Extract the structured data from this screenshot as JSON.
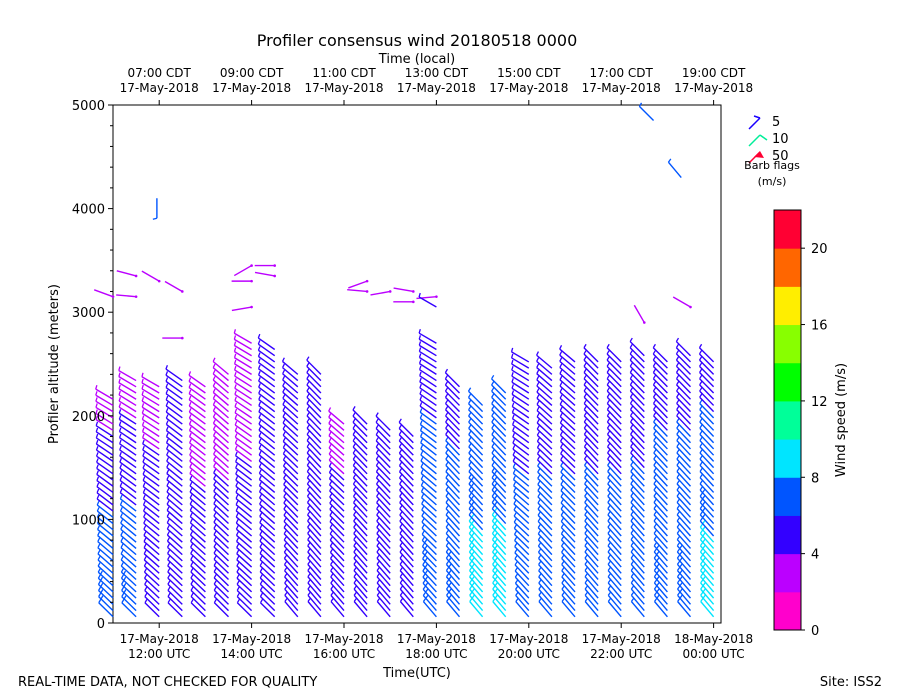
{
  "chart_data": {
    "type": "wind-barb-profile",
    "title": "Profiler consensus wind 20180518 0000",
    "xlabel": "Time(UTC)",
    "xlabel_top": "Time (local)",
    "ylabel": "Profiler altitude (meters)",
    "ylim": [
      0,
      5000
    ],
    "y_ticks": [
      0,
      1000,
      2000,
      3000,
      4000,
      5000
    ],
    "x_range_hours": [
      11.0,
      24.16
    ],
    "x_ticks_bottom": [
      {
        "hour": 12,
        "date": "17-May-2018",
        "time": "12:00 UTC"
      },
      {
        "hour": 14,
        "date": "17-May-2018",
        "time": "14:00 UTC"
      },
      {
        "hour": 16,
        "date": "17-May-2018",
        "time": "16:00 UTC"
      },
      {
        "hour": 18,
        "date": "17-May-2018",
        "time": "18:00 UTC"
      },
      {
        "hour": 20,
        "date": "17-May-2018",
        "time": "20:00 UTC"
      },
      {
        "hour": 22,
        "date": "17-May-2018",
        "time": "22:00 UTC"
      },
      {
        "hour": 24,
        "date": "18-May-2018",
        "time": "00:00 UTC"
      }
    ],
    "x_ticks_top": [
      {
        "hour": 12,
        "time": "07:00 CDT",
        "date": "17-May-2018"
      },
      {
        "hour": 14,
        "time": "09:00 CDT",
        "date": "17-May-2018"
      },
      {
        "hour": 16,
        "time": "11:00 CDT",
        "date": "17-May-2018"
      },
      {
        "hour": 18,
        "time": "13:00 CDT",
        "date": "17-May-2018"
      },
      {
        "hour": 20,
        "time": "15:00 CDT",
        "date": "17-May-2018"
      },
      {
        "hour": 22,
        "time": "17:00 CDT",
        "date": "17-May-2018"
      },
      {
        "hour": 24,
        "time": "19:00 CDT",
        "date": "17-May-2018"
      }
    ],
    "barb_legend": {
      "entries": [
        {
          "label": "5",
          "color": "#1a00ff"
        },
        {
          "label": "10",
          "color": "#00ee99"
        },
        {
          "label": "50",
          "color": "#ff0033"
        }
      ],
      "title": "Barb flags",
      "units": "(m/s)"
    },
    "colorbar": {
      "label": "Wind speed (m/s)",
      "ticks": [
        0,
        4,
        8,
        12,
        16,
        20
      ],
      "min": 0,
      "max": 22,
      "step": 2,
      "colors": [
        "#ff00cc",
        "#bb00ff",
        "#3300ff",
        "#0055ff",
        "#00e5ff",
        "#00ff99",
        "#00ff00",
        "#88ff00",
        "#ffee00",
        "#ff6600",
        "#ff0033"
      ]
    },
    "profiles": [
      {
        "hour": 11.0,
        "top": 2200,
        "upper_dir": 300,
        "upper_speed": 3,
        "lower_speed": 8,
        "lower_dir": 315
      },
      {
        "hour": 11.5,
        "top": 2350,
        "upper_dir": 300,
        "upper_speed": 3,
        "lower_speed": 8,
        "lower_dir": 315
      },
      {
        "hour": 12.0,
        "top": 2300,
        "upper_dir": 300,
        "upper_speed": 3,
        "lower_speed": 6,
        "lower_dir": 315
      },
      {
        "hour": 12.5,
        "top": 2350,
        "upper_dir": 305,
        "upper_speed": 4,
        "lower_speed": 6,
        "lower_dir": 315
      },
      {
        "hour": 13.0,
        "top": 2300,
        "upper_dir": 305,
        "upper_speed": 3,
        "lower_speed": 5,
        "lower_dir": 315
      },
      {
        "hour": 13.5,
        "top": 2400,
        "upper_dir": 310,
        "upper_speed": 3,
        "lower_speed": 5,
        "lower_dir": 315
      },
      {
        "hour": 14.0,
        "top": 2700,
        "upper_dir": 300,
        "upper_speed": 3,
        "lower_speed": 5,
        "lower_dir": 315
      },
      {
        "hour": 14.5,
        "top": 2650,
        "upper_dir": 305,
        "upper_speed": 5,
        "lower_speed": 6,
        "lower_dir": 315
      },
      {
        "hour": 15.0,
        "top": 2450,
        "upper_dir": 310,
        "upper_speed": 5,
        "lower_speed": 6,
        "lower_dir": 320
      },
      {
        "hour": 15.5,
        "top": 2450,
        "upper_dir": 315,
        "upper_speed": 5,
        "lower_speed": 6,
        "lower_dir": 320
      },
      {
        "hour": 16.0,
        "top": 1950,
        "upper_dir": 310,
        "upper_speed": 3,
        "lower_speed": 6,
        "lower_dir": 320
      },
      {
        "hour": 16.5,
        "top": 1950,
        "upper_dir": 315,
        "upper_speed": 5,
        "lower_speed": 6,
        "lower_dir": 320
      },
      {
        "hour": 17.0,
        "top": 1900,
        "upper_dir": 315,
        "upper_speed": 5,
        "lower_speed": 6,
        "lower_dir": 320
      },
      {
        "hour": 17.5,
        "top": 1850,
        "upper_dir": 315,
        "upper_speed": 5,
        "lower_speed": 6,
        "lower_dir": 320
      },
      {
        "hour": 18.0,
        "top": 2750,
        "upper_dir": 300,
        "upper_speed": 5,
        "lower_speed": 8,
        "lower_dir": 320
      },
      {
        "hour": 18.5,
        "top": 2300,
        "upper_dir": 315,
        "upper_speed": 5,
        "lower_speed": 8,
        "lower_dir": 320
      },
      {
        "hour": 19.0,
        "top": 2150,
        "upper_dir": 315,
        "upper_speed": 6,
        "lower_speed": 9,
        "lower_dir": 320
      },
      {
        "hour": 19.5,
        "top": 2250,
        "upper_dir": 315,
        "upper_speed": 6,
        "lower_speed": 9,
        "lower_dir": 320
      },
      {
        "hour": 20.0,
        "top": 2550,
        "upper_dir": 300,
        "upper_speed": 5,
        "lower_speed": 7,
        "lower_dir": 320
      },
      {
        "hour": 20.5,
        "top": 2500,
        "upper_dir": 310,
        "upper_speed": 5,
        "lower_speed": 7,
        "lower_dir": 320
      },
      {
        "hour": 21.0,
        "top": 2550,
        "upper_dir": 310,
        "upper_speed": 5,
        "lower_speed": 7,
        "lower_dir": 320
      },
      {
        "hour": 21.5,
        "top": 2550,
        "upper_dir": 315,
        "upper_speed": 5,
        "lower_speed": 7,
        "lower_dir": 320
      },
      {
        "hour": 22.0,
        "top": 2550,
        "upper_dir": 315,
        "upper_speed": 5,
        "lower_speed": 7,
        "lower_dir": 320
      },
      {
        "hour": 22.5,
        "top": 2600,
        "upper_dir": 315,
        "upper_speed": 5,
        "lower_speed": 7,
        "lower_dir": 320
      },
      {
        "hour": 23.0,
        "top": 2550,
        "upper_dir": 315,
        "upper_speed": 5,
        "lower_speed": 8,
        "lower_dir": 320
      },
      {
        "hour": 23.5,
        "top": 2600,
        "upper_dir": 315,
        "upper_speed": 5,
        "lower_speed": 8,
        "lower_dir": 320
      },
      {
        "hour": 24.0,
        "top": 2550,
        "upper_dir": 315,
        "upper_speed": 5,
        "lower_speed": 9,
        "lower_dir": 320
      }
    ],
    "isolated_barbs": [
      {
        "hour": 11.0,
        "alt": 3150,
        "dir": 290,
        "speed": 2
      },
      {
        "hour": 11.5,
        "alt": 3350,
        "dir": 285,
        "speed": 2
      },
      {
        "hour": 11.5,
        "alt": 3150,
        "dir": 275,
        "speed": 2
      },
      {
        "hour": 12.0,
        "alt": 3300,
        "dir": 300,
        "speed": 2
      },
      {
        "hour": 12.5,
        "alt": 3200,
        "dir": 300,
        "speed": 2
      },
      {
        "hour": 12.5,
        "alt": 2750,
        "dir": 270,
        "speed": 2
      },
      {
        "hour": 14.0,
        "alt": 3450,
        "dir": 240,
        "speed": 2
      },
      {
        "hour": 14.0,
        "alt": 3300,
        "dir": 270,
        "speed": 2
      },
      {
        "hour": 14.0,
        "alt": 3050,
        "dir": 260,
        "speed": 2
      },
      {
        "hour": 14.5,
        "alt": 3450,
        "dir": 270,
        "speed": 2
      },
      {
        "hour": 14.5,
        "alt": 3350,
        "dir": 280,
        "speed": 2
      },
      {
        "hour": 16.5,
        "alt": 3300,
        "dir": 250,
        "speed": 2
      },
      {
        "hour": 16.5,
        "alt": 3200,
        "dir": 275,
        "speed": 2
      },
      {
        "hour": 17.0,
        "alt": 3200,
        "dir": 260,
        "speed": 2
      },
      {
        "hour": 17.5,
        "alt": 3200,
        "dir": 280,
        "speed": 2
      },
      {
        "hour": 17.5,
        "alt": 3100,
        "dir": 270,
        "speed": 2
      },
      {
        "hour": 18.0,
        "alt": 3150,
        "dir": 265,
        "speed": 2
      },
      {
        "hour": 18.0,
        "alt": 3050,
        "dir": 300,
        "speed": 5
      },
      {
        "hour": 11.95,
        "alt": 4100,
        "dir": 180,
        "speed": 6
      },
      {
        "hour": 22.7,
        "alt": 4850,
        "dir": 315,
        "speed": 6
      },
      {
        "hour": 23.3,
        "alt": 4300,
        "dir": 320,
        "speed": 6
      },
      {
        "hour": 22.5,
        "alt": 2900,
        "dir": 330,
        "speed": 2
      },
      {
        "hour": 23.5,
        "alt": 3050,
        "dir": 300,
        "speed": 2
      }
    ]
  },
  "footer": {
    "disclaimer": "REAL-TIME DATA, NOT CHECKED FOR QUALITY",
    "site": "Site: ISS2"
  }
}
